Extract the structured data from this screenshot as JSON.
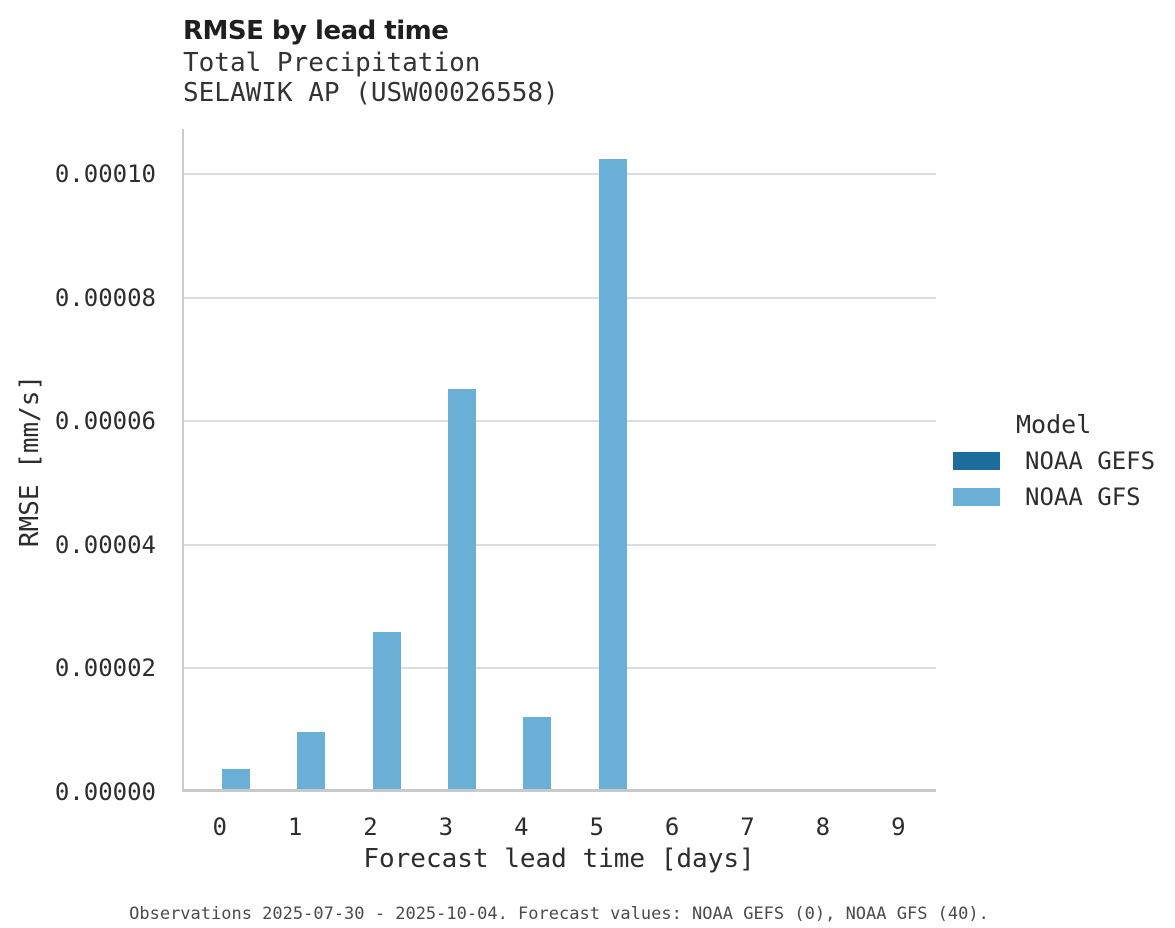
{
  "chart_data": {
    "type": "bar",
    "title": "RMSE by lead time",
    "subtitle": [
      "Total Precipitation",
      "SELAWIK AP (USW00026558)"
    ],
    "xlabel": "Forecast lead time [days]",
    "ylabel": "RMSE [mm/s]",
    "categories": [
      "0",
      "1",
      "2",
      "3",
      "4",
      "5",
      "6",
      "7",
      "8",
      "9"
    ],
    "series": [
      {
        "name": "NOAA GEFS",
        "color": "#1d6d9c",
        "values": [
          0,
          0,
          0,
          0,
          0,
          0,
          0,
          0,
          0,
          0
        ]
      },
      {
        "name": "NOAA GFS",
        "color": "#69afd6",
        "values": [
          3.3e-06,
          9.2e-06,
          2.54e-05,
          6.47e-05,
          1.16e-05,
          0.000102,
          0,
          0,
          0,
          0
        ]
      }
    ],
    "y_ticks": [
      0,
      2e-05,
      4e-05,
      6e-05,
      8e-05,
      0.0001
    ],
    "y_tick_labels": [
      "0.00000",
      "0.00002",
      "0.00004",
      "0.00006",
      "0.00008",
      "0.00010"
    ],
    "ylim": [
      0,
      0.0001073
    ],
    "grid": true,
    "legend_title": "Model",
    "legend_position": "right",
    "footer": "Observations 2025-07-30 - 2025-10-04. Forecast values: NOAA GEFS (0), NOAA GFS (40).",
    "colors": {
      "gridline": "#dddddd",
      "axis_line": "#cccccc",
      "title_text": "#1f1f1f",
      "label_text": "#2d2d2d",
      "footer_text": "#4a4a4a"
    }
  }
}
